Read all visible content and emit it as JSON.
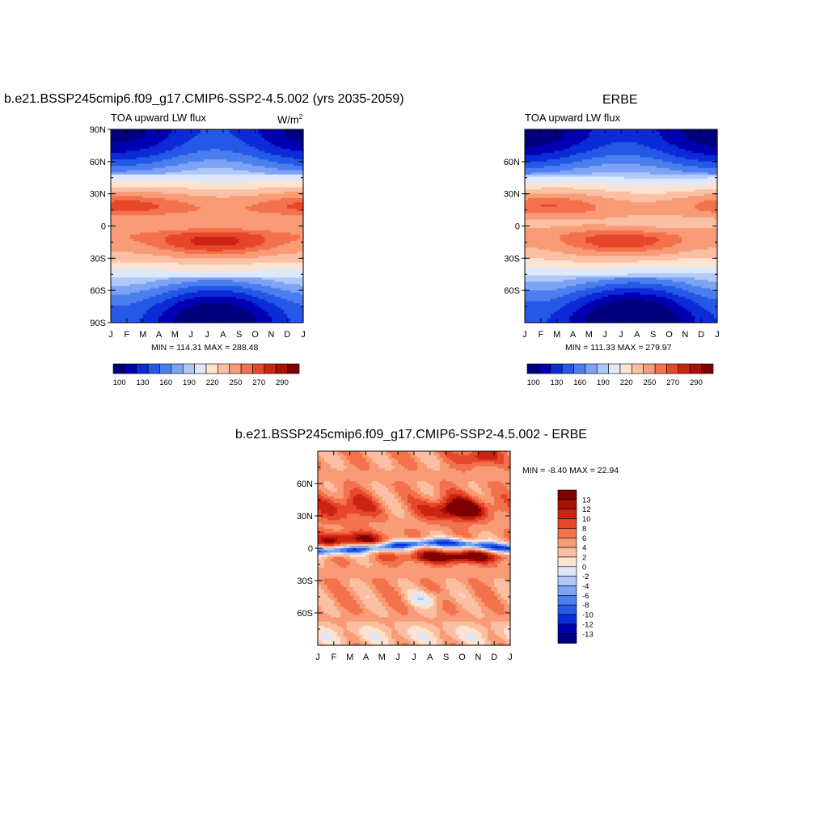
{
  "panel_left": {
    "title": "b.e21.BSSP245cmip6.f09_g17.CMIP6-SSP2-4.5.002 (yrs 2035-2059)",
    "left_string": "TOA upward LW flux",
    "units": "W/m",
    "units_sup": "2",
    "minmax": "MIN = 114.31 MAX = 288.48"
  },
  "panel_right": {
    "title": "ERBE",
    "left_string": "TOA upward LW flux",
    "minmax": "MIN = 111.33 MAX = 279.97"
  },
  "panel_diff": {
    "title": "b.e21.BSSP245cmip6.f09_g17.CMIP6-SSP2-4.5.002 - ERBE",
    "minmax": "MIN =  -8.40 MAX =  22.94"
  },
  "colors": {
    "scale": [
      "#00007f",
      "#0000b2",
      "#0c2bd8",
      "#2458e6",
      "#4b7fef",
      "#7ea2f4",
      "#b0c9f8",
      "#dde9fb",
      "#fde3d0",
      "#fbc0a4",
      "#f89b77",
      "#f3724d",
      "#e6472a",
      "#cc2412",
      "#aa1105",
      "#7e0000"
    ]
  },
  "chart_data": [
    {
      "type": "heatmap",
      "name": "model",
      "x": [
        "J",
        "F",
        "M",
        "A",
        "M",
        "J",
        "J",
        "A",
        "S",
        "O",
        "N",
        "D",
        "J"
      ],
      "y_ticks_left": [
        "90N",
        "60N",
        "30N",
        "0",
        "30S",
        "60S",
        "90S"
      ],
      "y_tick_values": [
        90,
        60,
        30,
        0,
        -30,
        -60,
        -90
      ],
      "xlim": [
        0,
        12
      ],
      "ylim": [
        -90,
        90
      ],
      "min": 114.31,
      "max": 288.48,
      "colorbar": {
        "orientation": "horizontal",
        "labels": [
          "100",
          "130",
          "160",
          "190",
          "220",
          "250",
          "270",
          "290"
        ],
        "levels": [
          100,
          115,
          130,
          145,
          160,
          175,
          190,
          205,
          220,
          235,
          250,
          260,
          270,
          280,
          290
        ]
      }
    },
    {
      "type": "heatmap",
      "name": "obs",
      "x": [
        "J",
        "F",
        "M",
        "A",
        "M",
        "J",
        "J",
        "A",
        "S",
        "O",
        "N",
        "D",
        "J"
      ],
      "y_ticks_left": [
        "60N",
        "30N",
        "0",
        "30S",
        "60S"
      ],
      "y_tick_values": [
        60,
        30,
        0,
        -30,
        -60
      ],
      "xlim": [
        0,
        12
      ],
      "ylim": [
        -90,
        90
      ],
      "min": 111.33,
      "max": 279.97,
      "colorbar": {
        "orientation": "horizontal",
        "labels": [
          "100",
          "130",
          "160",
          "190",
          "220",
          "250",
          "270",
          "290"
        ],
        "levels": [
          100,
          115,
          130,
          145,
          160,
          175,
          190,
          205,
          220,
          235,
          250,
          260,
          270,
          280,
          290
        ]
      }
    },
    {
      "type": "heatmap",
      "name": "difference",
      "x": [
        "J",
        "F",
        "M",
        "A",
        "M",
        "J",
        "J",
        "A",
        "S",
        "O",
        "N",
        "D",
        "J"
      ],
      "y_ticks_left": [
        "60N",
        "30N",
        "0",
        "30S",
        "60S"
      ],
      "y_tick_values": [
        60,
        30,
        0,
        -30,
        -60
      ],
      "xlim": [
        0,
        12
      ],
      "ylim": [
        -90,
        90
      ],
      "min": -8.4,
      "max": 22.94,
      "colorbar": {
        "orientation": "vertical",
        "labels": [
          "13",
          "12",
          "10",
          "8",
          "6",
          "4",
          "2",
          "0",
          "-2",
          "-4",
          "-6",
          "-8",
          "-10",
          "-12",
          "-13"
        ],
        "levels": [
          13,
          12,
          10,
          8,
          6,
          4,
          2,
          0,
          -2,
          -4,
          -6,
          -8,
          -10,
          -12,
          -13
        ]
      }
    }
  ]
}
